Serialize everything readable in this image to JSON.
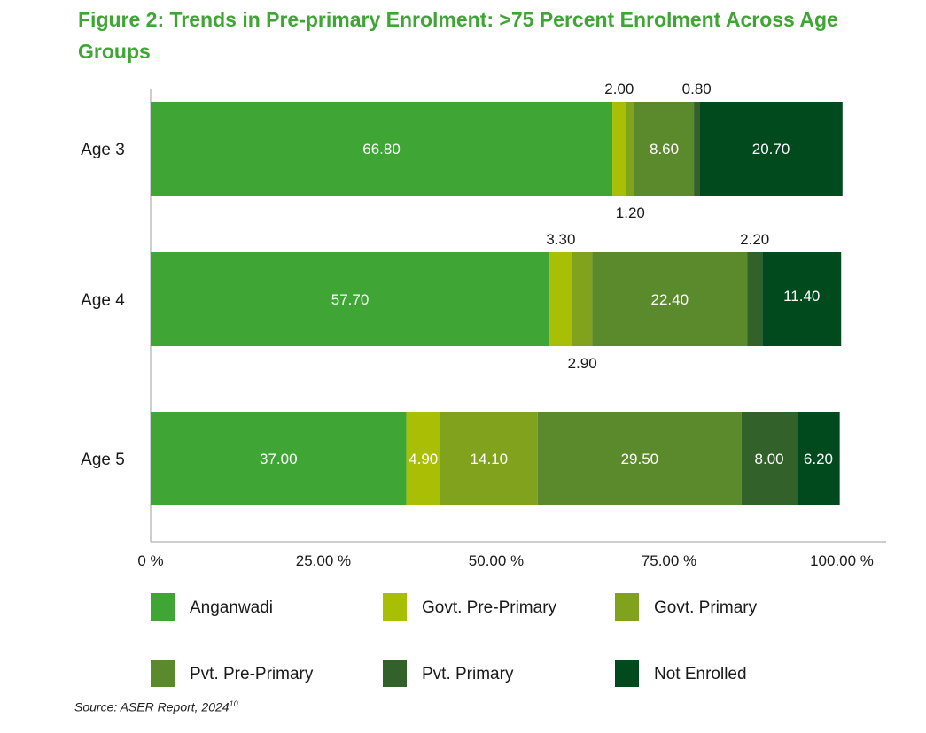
{
  "title": "Figure 2: Trends in Pre-primary Enrolment: >75 Percent Enrolment Across Age Groups",
  "source_prefix": "Source: ASER Report, 2024",
  "source_sup": "10",
  "colors": {
    "Anganwadi": "#3fa535",
    "Govt. Pre-Primary": "#a8bf06",
    "Govt. Primary": "#80a21d",
    "Pvt. Pre-Primary": "#5b8a2c",
    "Pvt. Primary": "#33612a",
    "Not Enrolled": "#004a1e"
  },
  "chart_data": {
    "type": "bar",
    "orientation": "horizontal",
    "stacked": true,
    "categories": [
      "Age 3",
      "Age 4",
      "Age 5"
    ],
    "series": [
      {
        "name": "Anganwadi",
        "values": [
          66.8,
          57.7,
          37.0
        ],
        "labels": [
          "66.80",
          "57.70",
          "37.00"
        ]
      },
      {
        "name": "Govt. Pre-Primary",
        "values": [
          2.0,
          3.3,
          4.9
        ],
        "labels": [
          "2.00",
          "3.30",
          "4.90"
        ]
      },
      {
        "name": "Govt. Primary",
        "values": [
          1.2,
          2.9,
          14.1
        ],
        "labels": [
          "1.20",
          "2.90",
          "14.10"
        ]
      },
      {
        "name": "Pvt. Pre-Primary",
        "values": [
          8.6,
          22.4,
          29.5
        ],
        "labels": [
          "8.60",
          "22.40",
          "29.50"
        ]
      },
      {
        "name": "Pvt. Primary",
        "values": [
          0.8,
          2.2,
          8.0
        ],
        "labels": [
          "0.80",
          "2.20",
          "8.00"
        ]
      },
      {
        "name": "Not Enrolled",
        "values": [
          20.7,
          11.4,
          6.2
        ],
        "labels": [
          "20.70",
          "11.40",
          "6.20"
        ]
      }
    ],
    "xlim": [
      0,
      100
    ],
    "xticks": [
      "0 %",
      "25.00 %",
      "50.00 %",
      "75.00 %",
      "100.00 %"
    ],
    "legend": {
      "position": "bottom",
      "items": [
        "Anganwadi",
        "Govt. Pre-Primary",
        "Govt. Primary",
        "Pvt. Pre-Primary",
        "Pvt. Primary",
        "Not Enrolled"
      ]
    },
    "grid": false
  }
}
